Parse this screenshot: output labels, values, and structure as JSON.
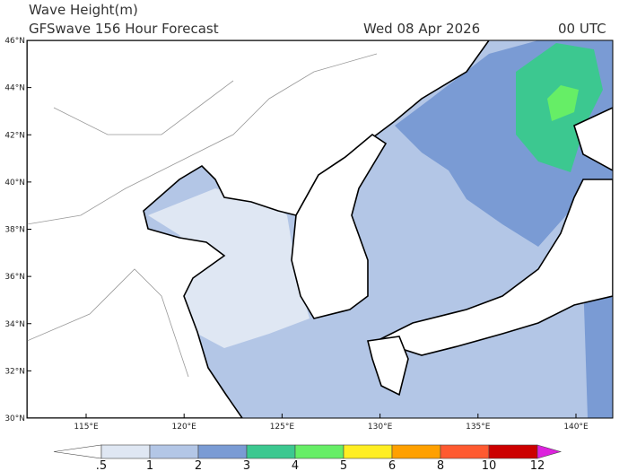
{
  "header": {
    "title": "Wave Height(m)",
    "subtitle": "GFSwave 156 Hour Forecast",
    "date": "Wed 08 Apr 2026",
    "time": "00 UTC"
  },
  "map": {
    "lat_labels": [
      "46°N",
      "44°N",
      "42°N",
      "40°N",
      "38°N",
      "36°N",
      "34°N",
      "32°N",
      "30°N"
    ],
    "lon_labels": [
      "115°E",
      "120°E",
      "125°E",
      "130°E",
      "135°E",
      "140°E"
    ]
  },
  "colorbar": {
    "labels": [
      ".5",
      "1",
      "2",
      "3",
      "4",
      "5",
      "6",
      "8",
      "10",
      "12"
    ],
    "colors": [
      "#ffffff",
      "#dfe7f3",
      "#b3c6e6",
      "#7a9bd4",
      "#3cc890",
      "#66ee66",
      "#ffee22",
      "#ffa000",
      "#ff5a30",
      "#cc0000",
      "#dd22dd"
    ]
  }
}
